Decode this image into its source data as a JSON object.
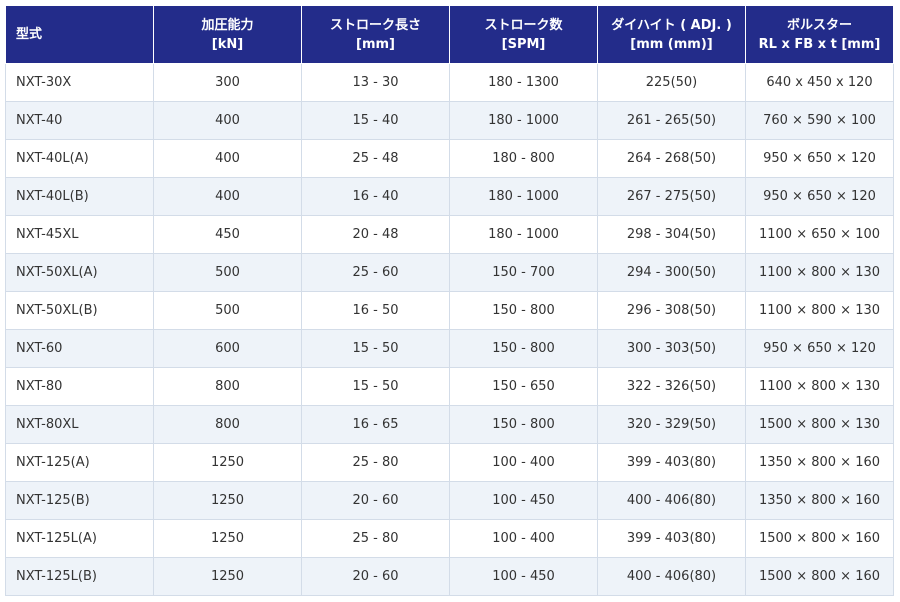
{
  "table": {
    "header": [
      [
        "型式"
      ],
      [
        "加圧能力",
        "[kN]"
      ],
      [
        "ストローク長さ",
        "[mm]"
      ],
      [
        "ストローク数",
        "[SPM]"
      ],
      [
        "ダイハイト ( ADJ. )",
        "[mm (mm)]"
      ],
      [
        "ボルスター",
        "RL x FB x t [mm]"
      ]
    ],
    "rows": [
      [
        "NXT-30X",
        "300",
        "13 - 30",
        "180 - 1300",
        "225(50)",
        "640 x 450 x 120"
      ],
      [
        "NXT-40",
        "400",
        "15 - 40",
        "180 - 1000",
        "261 - 265(50)",
        "760 × 590 × 100"
      ],
      [
        "NXT-40L(A)",
        "400",
        "25 - 48",
        "180 - 800",
        "264 - 268(50)",
        "950 × 650 × 120"
      ],
      [
        "NXT-40L(B)",
        "400",
        "16 - 40",
        "180 - 1000",
        "267 - 275(50)",
        "950 × 650 × 120"
      ],
      [
        "NXT-45XL",
        "450",
        "20 - 48",
        "180 - 1000",
        "298 - 304(50)",
        "1100 × 650 × 100"
      ],
      [
        "NXT-50XL(A)",
        "500",
        "25 - 60",
        "150 - 700",
        "294 - 300(50)",
        "1100 × 800 × 130"
      ],
      [
        "NXT-50XL(B)",
        "500",
        "16 - 50",
        "150 - 800",
        "296 - 308(50)",
        "1100 × 800 × 130"
      ],
      [
        "NXT-60",
        "600",
        "15 - 50",
        "150 - 800",
        "300 - 303(50)",
        "950 × 650 × 120"
      ],
      [
        "NXT-80",
        "800",
        "15 - 50",
        "150 - 650",
        "322 - 326(50)",
        "1100 × 800 × 130"
      ],
      [
        "NXT-80XL",
        "800",
        "16 - 65",
        "150 - 800",
        "320 - 329(50)",
        "1500 × 800 × 130"
      ],
      [
        "NXT-125(A)",
        "1250",
        "25 - 80",
        "100 - 400",
        "399 - 403(80)",
        "1350 × 800 × 160"
      ],
      [
        "NXT-125(B)",
        "1250",
        "20 - 60",
        "100 - 450",
        "400 - 406(80)",
        "1350 × 800 × 160"
      ],
      [
        "NXT-125L(A)",
        "1250",
        "25 - 80",
        "100 - 400",
        "399 - 403(80)",
        "1500 × 800 × 160"
      ],
      [
        "NXT-125L(B)",
        "1250",
        "20 - 60",
        "100 - 450",
        "400 - 406(80)",
        "1500 × 800 × 160"
      ]
    ]
  }
}
